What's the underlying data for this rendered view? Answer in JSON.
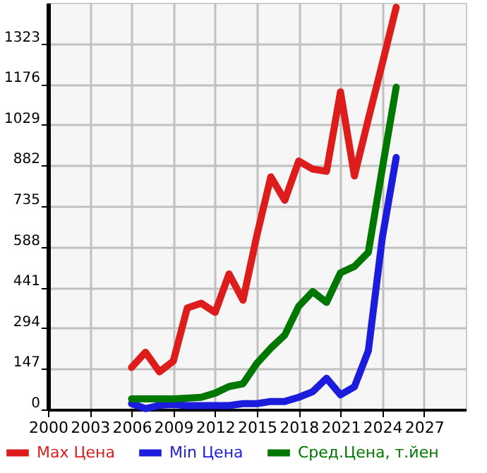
{
  "chart_data": {
    "type": "line",
    "x": [
      2006,
      2007,
      2008,
      2009,
      2010,
      2011,
      2012,
      2013,
      2014,
      2015,
      2016,
      2017,
      2018,
      2019,
      2020,
      2021,
      2022,
      2023,
      2024,
      2025
    ],
    "series": [
      {
        "name": "Max Цена",
        "color": "#dd1c1c",
        "values": [
          152,
          207,
          136,
          175,
          367,
          384,
          351,
          490,
          395,
          630,
          841,
          756,
          898,
          869,
          861,
          1148,
          844,
          1050,
          1250,
          1454
        ]
      },
      {
        "name": "Min Цена",
        "color": "#1c1cdd",
        "values": [
          21,
          3,
          15,
          18,
          14,
          14,
          14,
          14,
          21,
          21,
          29,
          29,
          44,
          64,
          113,
          53,
          82,
          212,
          620,
          911
        ]
      },
      {
        "name": "Сред.Цена, т.йен",
        "color": "#007700",
        "values": [
          38,
          38,
          38,
          38,
          41,
          44,
          59,
          83,
          93,
          167,
          222,
          269,
          373,
          426,
          387,
          494,
          517,
          568,
          870,
          1165
        ]
      }
    ],
    "xlim": [
      2000,
      2030
    ],
    "xticks": [
      2000,
      2003,
      2006,
      2009,
      2012,
      2015,
      2018,
      2021,
      2024,
      2027
    ],
    "ylim": [
      0,
      1470
    ],
    "yticks": [
      0,
      147,
      294,
      441,
      588,
      735,
      882,
      1029,
      1176,
      1323
    ],
    "grid": true,
    "legend": "bottom",
    "marker": "none",
    "line_style": "solid"
  }
}
